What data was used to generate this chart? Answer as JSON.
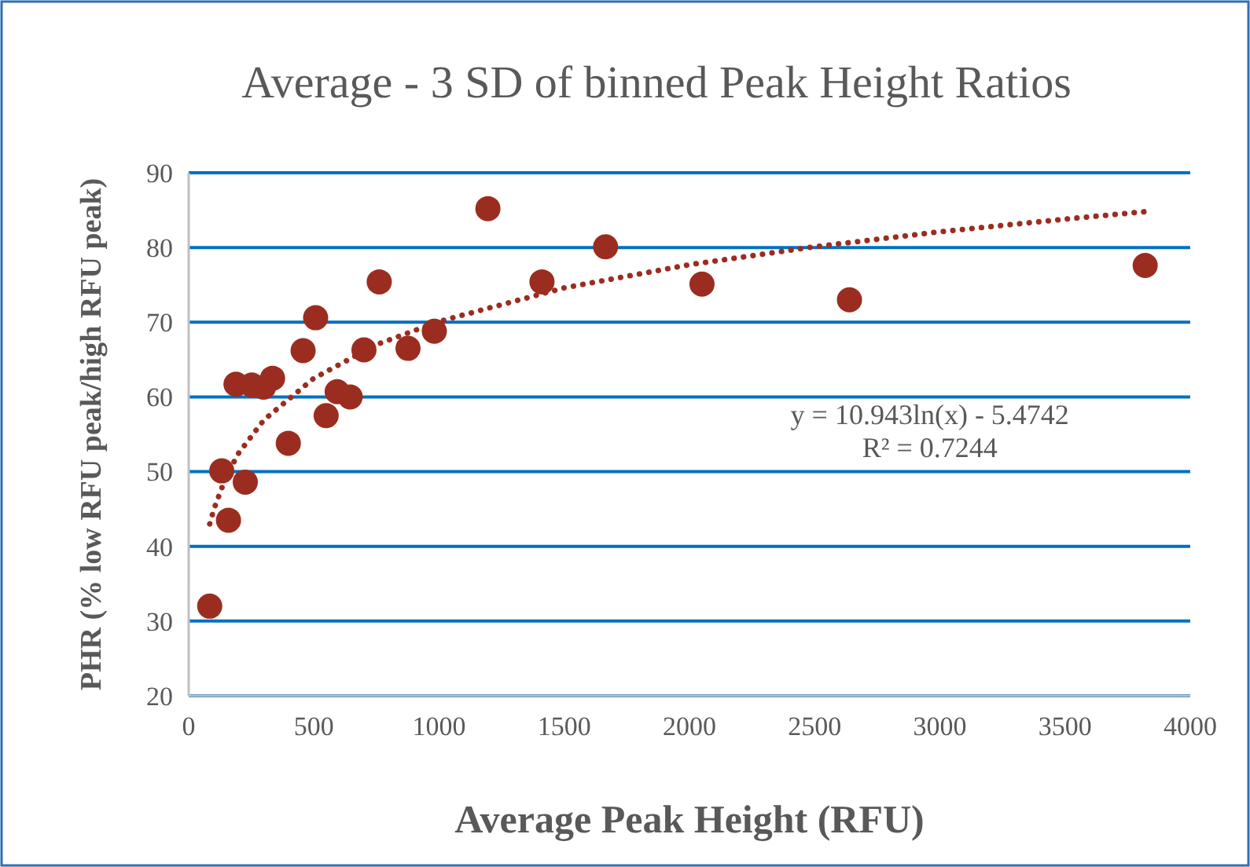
{
  "chart_data": {
    "type": "scatter",
    "title": "Average - 3 SD of binned Peak Height Ratios",
    "xlabel": "Average Peak Height (RFU)",
    "ylabel": "PHR (% low RFU peak/high RFU peak)",
    "xlim": [
      0,
      4000
    ],
    "xticks": [
      0,
      500,
      1000,
      1500,
      2000,
      2500,
      3000,
      3500,
      4000
    ],
    "ylim": [
      20,
      90
    ],
    "yticks": [
      20,
      30,
      40,
      50,
      60,
      70,
      80,
      90
    ],
    "grid": "y",
    "marker": "circle",
    "series": [
      {
        "color": "#9b2d20",
        "x": [
          84,
          132,
          159,
          189,
          226,
          252,
          299,
          335,
          398,
          457,
          507,
          549,
          593,
          645,
          700,
          761,
          876,
          981,
          1195,
          1411,
          1665,
          2050,
          2639,
          3820
        ],
        "values": [
          32.0,
          50.1,
          43.5,
          61.7,
          48.6,
          61.6,
          61.3,
          62.5,
          53.8,
          66.2,
          70.6,
          57.5,
          60.7,
          60.0,
          66.3,
          75.4,
          66.5,
          68.8,
          85.2,
          75.4,
          80.1,
          75.1,
          73.0,
          77.6
        ]
      },
      {
        "type": "line",
        "color": "#9b2d20",
        "line_style": "dotted",
        "marker": "none",
        "x": [
          84,
          100,
          150,
          200,
          300,
          500,
          750,
          1000,
          1500,
          2000,
          2500,
          3000,
          3500,
          3820
        ],
        "values": [
          43.0,
          44.9,
          49.4,
          52.5,
          56.9,
          62.5,
          67.0,
          70.1,
          74.6,
          77.7,
          80.1,
          82.1,
          83.8,
          84.8
        ]
      }
    ],
    "annotations": [
      "y = 10.943ln(x) - 5.4742",
      "R² = 0.7244"
    ]
  }
}
